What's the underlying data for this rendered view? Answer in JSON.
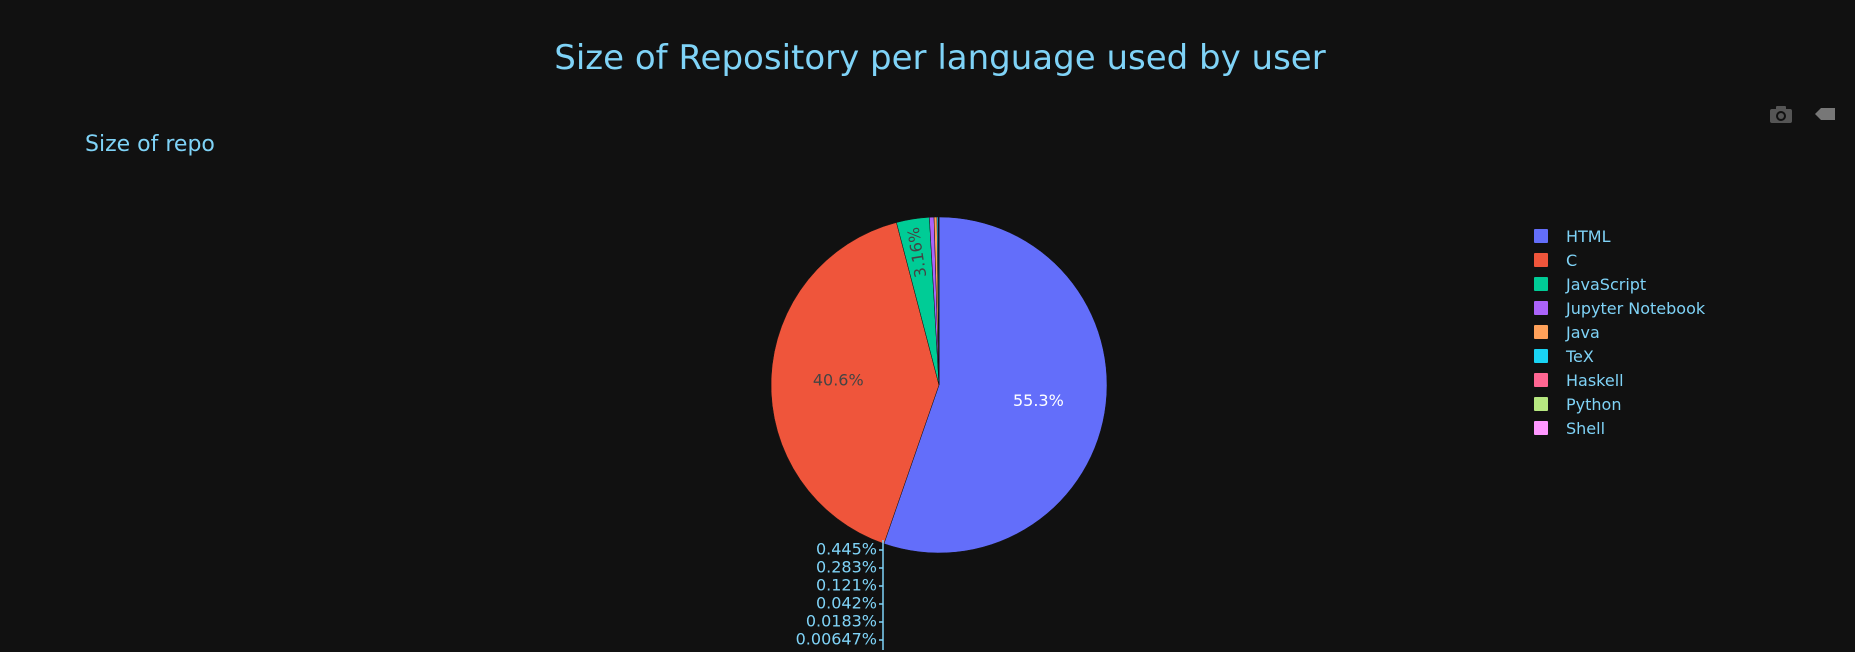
{
  "title": "Size of Repository per language used by user",
  "subtitle": "Size of repo",
  "modebar": {
    "camera_icon": "camera-icon",
    "plotly_icon": "plotly-logo-icon"
  },
  "chart_data": {
    "type": "pie",
    "labels": [
      "HTML",
      "C",
      "JavaScript",
      "Jupyter Notebook",
      "Java",
      "TeX",
      "Haskell",
      "Python",
      "Shell"
    ],
    "values": [
      55.3,
      40.6,
      3.16,
      0.445,
      0.283,
      0.121,
      0.042,
      0.0183,
      0.00647
    ],
    "percent_labels": [
      "55.3%",
      "40.6%",
      "3.16%",
      "0.445%",
      "0.283%",
      "0.121%",
      "0.042%",
      "0.0183%",
      "0.00647%"
    ],
    "colors": [
      "#636efa",
      "#ef553b",
      "#00cc96",
      "#ab63fa",
      "#ffa15a",
      "#19d3f3",
      "#ff6692",
      "#b6e880",
      "#ff97ff"
    ],
    "legend_position": "right",
    "direction": "clockwise",
    "start_angle": "top"
  }
}
